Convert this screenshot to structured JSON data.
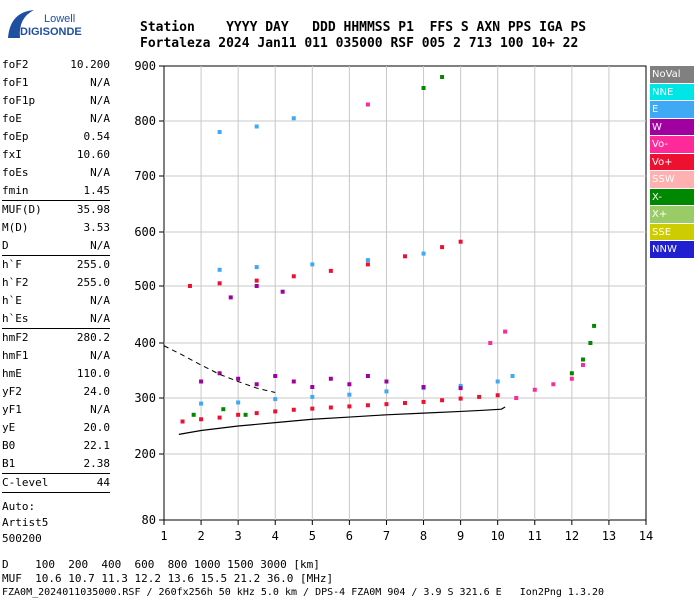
{
  "logo": {
    "line1": "Lowell",
    "line2": "DIGISONDE"
  },
  "header": {
    "labels": "Station    YYYY DAY   DDD HHMMSS P1  FFS S AXN PPS IGA PS",
    "values": "Fortaleza 2024 Jan11 011 035000 RSF 005 2 713 100 10+ 22"
  },
  "params": [
    {
      "name": "foF2",
      "value": "10.200"
    },
    {
      "name": "foF1",
      "value": "N/A"
    },
    {
      "name": "foF1p",
      "value": "N/A"
    },
    {
      "name": "foE",
      "value": "N/A"
    },
    {
      "name": "foEp",
      "value": "0.54"
    },
    {
      "name": "fxI",
      "value": "10.60"
    },
    {
      "name": "foEs",
      "value": "N/A"
    },
    {
      "name": "fmin",
      "value": "1.45",
      "sep": true
    },
    {
      "name": "MUF(D)",
      "value": "35.98"
    },
    {
      "name": "M(D)",
      "value": "3.53"
    },
    {
      "name": "D",
      "value": "N/A",
      "sep": true
    },
    {
      "name": "h`F",
      "value": "255.0"
    },
    {
      "name": "h`F2",
      "value": "255.0"
    },
    {
      "name": "h`E",
      "value": "N/A"
    },
    {
      "name": "h`Es",
      "value": "N/A",
      "sep": true
    },
    {
      "name": "hmF2",
      "value": "280.2"
    },
    {
      "name": "hmF1",
      "value": "N/A"
    },
    {
      "name": "hmE",
      "value": "110.0"
    },
    {
      "name": "yF2",
      "value": "24.0"
    },
    {
      "name": "yF1",
      "value": "N/A"
    },
    {
      "name": "yE",
      "value": "20.0"
    },
    {
      "name": "B0",
      "value": "22.1"
    },
    {
      "name": "B1",
      "value": "2.38",
      "sep": true
    },
    {
      "name": "C-level",
      "value": "44",
      "sep": true
    }
  ],
  "auto": {
    "line1": "Auto:",
    "line2": "Artist5",
    "line3": "500200"
  },
  "legend": [
    {
      "label": "NoVal",
      "color": "#808080"
    },
    {
      "label": "NNE",
      "color": "#00e6e6"
    },
    {
      "label": "E",
      "color": "#3fa9f5"
    },
    {
      "label": "W",
      "color": "#a000a0"
    },
    {
      "label": "Vo-",
      "color": "#ff2a9a"
    },
    {
      "label": "Vo+",
      "color": "#ee1030"
    },
    {
      "label": "SSW",
      "color": "#ffb0b0"
    },
    {
      "label": "X-",
      "color": "#008800"
    },
    {
      "label": "X+",
      "color": "#99cc66"
    },
    {
      "label": "SSE",
      "color": "#cccc00"
    },
    {
      "label": "NNW",
      "color": "#2020d0"
    }
  ],
  "footer": {
    "row1": "D    100  200  400  600  800 1000 1500 3000 [km]",
    "row2": "MUF  10.6 10.7 11.3 12.2 13.6 15.5 21.2 36.0 [MHz]",
    "row3": "FZA0M_2024011035000.RSF / 260fx256h 50 kHz 5.0 km / DPS-4 FZA0M 904 / 3.9 S 321.6 E   Ion2Png 1.3.20"
  },
  "chart_data": {
    "type": "scatter",
    "x_ticks": [
      1,
      2,
      3,
      4,
      5,
      6,
      7,
      8,
      9,
      10,
      11,
      12,
      13,
      14
    ],
    "y_ticks": [
      80,
      200,
      300,
      400,
      500,
      600,
      700,
      800,
      900
    ],
    "xlim": [
      1,
      14
    ],
    "ylim": [
      80,
      900
    ],
    "grid": true,
    "series": [
      {
        "name": "Vo+",
        "color": "#ee1030",
        "points": [
          [
            1.5,
            258
          ],
          [
            2.0,
            262
          ],
          [
            2.5,
            265
          ],
          [
            3.0,
            270
          ],
          [
            3.5,
            273
          ],
          [
            4.0,
            276
          ],
          [
            4.5,
            279
          ],
          [
            5.0,
            281
          ],
          [
            5.5,
            283
          ],
          [
            6.0,
            285
          ],
          [
            6.5,
            287
          ],
          [
            7.0,
            289
          ],
          [
            7.5,
            291
          ],
          [
            8.0,
            293
          ],
          [
            8.5,
            296
          ],
          [
            9.0,
            299
          ],
          [
            9.5,
            302
          ],
          [
            10.0,
            305
          ],
          [
            1.7,
            500
          ],
          [
            2.5,
            505
          ],
          [
            3.5,
            510
          ],
          [
            4.5,
            518
          ],
          [
            5.5,
            528
          ],
          [
            6.5,
            540
          ],
          [
            7.5,
            555
          ],
          [
            8.5,
            572
          ],
          [
            9.0,
            582
          ]
        ]
      },
      {
        "name": "E",
        "color": "#3fa9f5",
        "points": [
          [
            2.0,
            290
          ],
          [
            3.0,
            292
          ],
          [
            4.0,
            298
          ],
          [
            5.0,
            302
          ],
          [
            6.0,
            306
          ],
          [
            7.0,
            312
          ],
          [
            8.0,
            318
          ],
          [
            9.0,
            322
          ],
          [
            10.0,
            330
          ],
          [
            10.4,
            340
          ],
          [
            2.5,
            530
          ],
          [
            3.5,
            535
          ],
          [
            5.0,
            540
          ],
          [
            6.5,
            548
          ],
          [
            8.0,
            560
          ],
          [
            2.5,
            780
          ],
          [
            3.5,
            790
          ],
          [
            4.5,
            805
          ]
        ]
      },
      {
        "name": "W",
        "color": "#a000a0",
        "points": [
          [
            2.0,
            330
          ],
          [
            2.5,
            345
          ],
          [
            3.0,
            335
          ],
          [
            3.5,
            325
          ],
          [
            4.0,
            340
          ],
          [
            4.5,
            330
          ],
          [
            5.0,
            320
          ],
          [
            5.5,
            335
          ],
          [
            6.0,
            325
          ],
          [
            6.5,
            340
          ],
          [
            7.0,
            330
          ],
          [
            8.0,
            320
          ],
          [
            9.0,
            318
          ],
          [
            2.8,
            480
          ],
          [
            3.5,
            500
          ],
          [
            4.2,
            490
          ]
        ]
      },
      {
        "name": "X-",
        "color": "#008800",
        "points": [
          [
            1.8,
            270
          ],
          [
            2.6,
            280
          ],
          [
            3.2,
            270
          ],
          [
            12.0,
            345
          ],
          [
            12.3,
            370
          ],
          [
            12.5,
            400
          ],
          [
            12.6,
            430
          ],
          [
            8.0,
            860
          ],
          [
            8.5,
            880
          ]
        ]
      },
      {
        "name": "Vo-",
        "color": "#ff2a9a",
        "points": [
          [
            10.5,
            300
          ],
          [
            11.0,
            315
          ],
          [
            11.5,
            325
          ],
          [
            12.0,
            335
          ],
          [
            12.3,
            360
          ],
          [
            9.8,
            400
          ],
          [
            10.2,
            420
          ],
          [
            6.5,
            830
          ]
        ]
      }
    ],
    "profile": [
      [
        1.4,
        235
      ],
      [
        2.0,
        242
      ],
      [
        3.0,
        250
      ],
      [
        4.0,
        256
      ],
      [
        5.0,
        262
      ],
      [
        6.0,
        266
      ],
      [
        7.0,
        270
      ],
      [
        8.0,
        273
      ],
      [
        9.0,
        276
      ],
      [
        9.6,
        278
      ],
      [
        10.1,
        280
      ],
      [
        10.2,
        284
      ]
    ],
    "profile_ext": [
      [
        1.0,
        395
      ],
      [
        1.5,
        378
      ],
      [
        2.0,
        360
      ],
      [
        2.5,
        343
      ],
      [
        3.0,
        330
      ],
      [
        3.5,
        318
      ],
      [
        4.0,
        310
      ]
    ]
  }
}
